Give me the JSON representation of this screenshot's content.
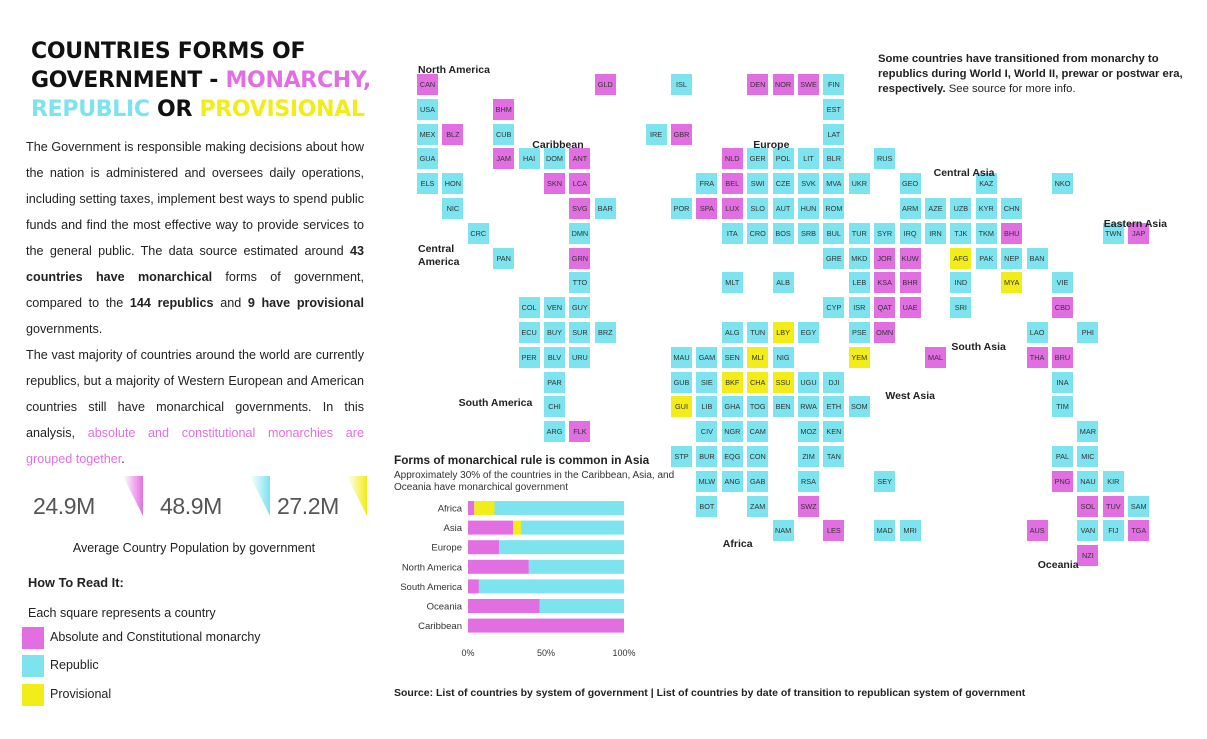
{
  "colors": {
    "monarchy": "#e26fe1",
    "republic": "#7de3ee",
    "provisional": "#f2ec18",
    "text": "#222222"
  },
  "title": {
    "line1": "COUNTRIES FORMS OF",
    "line2_prefix": "GOVERNMENT - ",
    "monarchy": "MONARCHY,",
    "republic": "REPUBLIC",
    "or": " OR ",
    "provisional": "PROVISIONAL"
  },
  "intro": {
    "p1_a": "The Government is responsible making decisions about how the nation is administered and oversees daily operations, including setting taxes, implement best ways to spend public funds and find the most effective way to provide services to the general public.  The  data source estimated around ",
    "p1_b1": "43 countries have monarchical",
    "p1_c": " forms of government, compared to the ",
    "p1_b2": "144 republics",
    "p1_d": " and ",
    "p1_b3": "9 have provisional",
    "p1_e": " governments.",
    "p2_a": "The vast majority of countries around the world are currently republics, but a majority of Western European and American countries still have monarchical governments. In this analysis, ",
    "p2_hl": "absolute and constitutional monarchies are grouped together",
    "p2_end": "."
  },
  "kpis": [
    {
      "value": "24.9M",
      "color": "#e26fe1"
    },
    {
      "value": "48.9M",
      "color": "#7de3ee"
    },
    {
      "value": "27.2M",
      "color": "#f2ec18"
    }
  ],
  "kpi_caption": "Average Country Population by government",
  "how_to_read": {
    "title": "How To Read It:",
    "subtitle": "Each square represents a country",
    "items": [
      {
        "label": "Absolute and Constitutional monarchy",
        "color": "#e26fe1"
      },
      {
        "label": "Republic",
        "color": "#7de3ee"
      },
      {
        "label": "Provisional",
        "color": "#f2ec18"
      }
    ]
  },
  "note": {
    "bold": "Some countries have transitioned from monarchy to republics during World I, World II, prewar or postwar era, respectively.",
    "rest": " See source for more info."
  },
  "regions": [
    {
      "name": "North America",
      "col": 0,
      "row": -0.55
    },
    {
      "name": "Caribbean",
      "col": 4.5,
      "row": 2.45
    },
    {
      "name": "Europe",
      "col": 13.2,
      "row": 2.45
    },
    {
      "name": "Central Asia",
      "col": 20.3,
      "row": 3.6
    },
    {
      "name": "Eastern Asia",
      "col": 27,
      "row": 5.65
    },
    {
      "name": "Central\nAmerica",
      "col": 0,
      "row": 6.65
    },
    {
      "name": "South Asia",
      "col": 21,
      "row": 10.6
    },
    {
      "name": "West Asia",
      "col": 18.4,
      "row": 12.6
    },
    {
      "name": "South America",
      "col": 1.6,
      "row": 12.85
    },
    {
      "name": "Africa",
      "col": 12,
      "row": 18.55
    },
    {
      "name": "Oceania",
      "col": 24.4,
      "row": 19.4
    }
  ],
  "countries": [
    {
      "code": "CAN",
      "col": 0,
      "row": 0,
      "gov": "M"
    },
    {
      "code": "GLD",
      "col": 7,
      "row": 0,
      "gov": "M"
    },
    {
      "code": "ISL",
      "col": 10,
      "row": 0,
      "gov": "R"
    },
    {
      "code": "DEN",
      "col": 13,
      "row": 0,
      "gov": "M"
    },
    {
      "code": "NOR",
      "col": 14,
      "row": 0,
      "gov": "M"
    },
    {
      "code": "SWE",
      "col": 15,
      "row": 0,
      "gov": "M"
    },
    {
      "code": "FIN",
      "col": 16,
      "row": 0,
      "gov": "R"
    },
    {
      "code": "USA",
      "col": 0,
      "row": 1,
      "gov": "R"
    },
    {
      "code": "BHM",
      "col": 3,
      "row": 1,
      "gov": "M"
    },
    {
      "code": "EST",
      "col": 16,
      "row": 1,
      "gov": "R"
    },
    {
      "code": "MEX",
      "col": 0,
      "row": 2,
      "gov": "R"
    },
    {
      "code": "BLZ",
      "col": 1,
      "row": 2,
      "gov": "M"
    },
    {
      "code": "CUB",
      "col": 3,
      "row": 2,
      "gov": "R"
    },
    {
      "code": "IRE",
      "col": 9,
      "row": 2,
      "gov": "R"
    },
    {
      "code": "GBR",
      "col": 10,
      "row": 2,
      "gov": "M"
    },
    {
      "code": "LAT",
      "col": 16,
      "row": 2,
      "gov": "R"
    },
    {
      "code": "GUA",
      "col": 0,
      "row": 3,
      "gov": "R"
    },
    {
      "code": "JAM",
      "col": 3,
      "row": 3,
      "gov": "M"
    },
    {
      "code": "HAI",
      "col": 4,
      "row": 3,
      "gov": "R"
    },
    {
      "code": "DOM",
      "col": 5,
      "row": 3,
      "gov": "R"
    },
    {
      "code": "ANT",
      "col": 6,
      "row": 3,
      "gov": "M"
    },
    {
      "code": "NLD",
      "col": 12,
      "row": 3,
      "gov": "M"
    },
    {
      "code": "GER",
      "col": 13,
      "row": 3,
      "gov": "R"
    },
    {
      "code": "POL",
      "col": 14,
      "row": 3,
      "gov": "R"
    },
    {
      "code": "LIT",
      "col": 15,
      "row": 3,
      "gov": "R"
    },
    {
      "code": "BLR",
      "col": 16,
      "row": 3,
      "gov": "R"
    },
    {
      "code": "RUS",
      "col": 18,
      "row": 3,
      "gov": "R"
    },
    {
      "code": "ELS",
      "col": 0,
      "row": 4,
      "gov": "R"
    },
    {
      "code": "HON",
      "col": 1,
      "row": 4,
      "gov": "R"
    },
    {
      "code": "SKN",
      "col": 5,
      "row": 4,
      "gov": "M"
    },
    {
      "code": "LCA",
      "col": 6,
      "row": 4,
      "gov": "M"
    },
    {
      "code": "FRA",
      "col": 11,
      "row": 4,
      "gov": "R"
    },
    {
      "code": "BEL",
      "col": 12,
      "row": 4,
      "gov": "M"
    },
    {
      "code": "SWI",
      "col": 13,
      "row": 4,
      "gov": "R"
    },
    {
      "code": "CZE",
      "col": 14,
      "row": 4,
      "gov": "R"
    },
    {
      "code": "SVK",
      "col": 15,
      "row": 4,
      "gov": "R"
    },
    {
      "code": "MVA",
      "col": 16,
      "row": 4,
      "gov": "R"
    },
    {
      "code": "UKR",
      "col": 17,
      "row": 4,
      "gov": "R"
    },
    {
      "code": "GEO",
      "col": 19,
      "row": 4,
      "gov": "R"
    },
    {
      "code": "KAZ",
      "col": 22,
      "row": 4,
      "gov": "R"
    },
    {
      "code": "NKO",
      "col": 25,
      "row": 4,
      "gov": "R"
    },
    {
      "code": "NIC",
      "col": 1,
      "row": 5,
      "gov": "R"
    },
    {
      "code": "SVG",
      "col": 6,
      "row": 5,
      "gov": "M"
    },
    {
      "code": "BAR",
      "col": 7,
      "row": 5,
      "gov": "R"
    },
    {
      "code": "POR",
      "col": 10,
      "row": 5,
      "gov": "R"
    },
    {
      "code": "SPA",
      "col": 11,
      "row": 5,
      "gov": "M"
    },
    {
      "code": "LUX",
      "col": 12,
      "row": 5,
      "gov": "M"
    },
    {
      "code": "SLO",
      "col": 13,
      "row": 5,
      "gov": "R"
    },
    {
      "code": "AUT",
      "col": 14,
      "row": 5,
      "gov": "R"
    },
    {
      "code": "HUN",
      "col": 15,
      "row": 5,
      "gov": "R"
    },
    {
      "code": "ROM",
      "col": 16,
      "row": 5,
      "gov": "R"
    },
    {
      "code": "ARM",
      "col": 19,
      "row": 5,
      "gov": "R"
    },
    {
      "code": "AZE",
      "col": 20,
      "row": 5,
      "gov": "R"
    },
    {
      "code": "UZB",
      "col": 21,
      "row": 5,
      "gov": "R"
    },
    {
      "code": "KYR",
      "col": 22,
      "row": 5,
      "gov": "R"
    },
    {
      "code": "CHN",
      "col": 23,
      "row": 5,
      "gov": "R"
    },
    {
      "code": "CRC",
      "col": 2,
      "row": 6,
      "gov": "R"
    },
    {
      "code": "DMN",
      "col": 6,
      "row": 6,
      "gov": "R"
    },
    {
      "code": "ITA",
      "col": 12,
      "row": 6,
      "gov": "R"
    },
    {
      "code": "CRO",
      "col": 13,
      "row": 6,
      "gov": "R"
    },
    {
      "code": "BOS",
      "col": 14,
      "row": 6,
      "gov": "R"
    },
    {
      "code": "SRB",
      "col": 15,
      "row": 6,
      "gov": "R"
    },
    {
      "code": "BUL",
      "col": 16,
      "row": 6,
      "gov": "R"
    },
    {
      "code": "TUR",
      "col": 17,
      "row": 6,
      "gov": "R"
    },
    {
      "code": "SYR",
      "col": 18,
      "row": 6,
      "gov": "R"
    },
    {
      "code": "IRQ",
      "col": 19,
      "row": 6,
      "gov": "R"
    },
    {
      "code": "IRN",
      "col": 20,
      "row": 6,
      "gov": "R"
    },
    {
      "code": "TJK",
      "col": 21,
      "row": 6,
      "gov": "R"
    },
    {
      "code": "TKM",
      "col": 22,
      "row": 6,
      "gov": "R"
    },
    {
      "code": "BHU",
      "col": 23,
      "row": 6,
      "gov": "M"
    },
    {
      "code": "TWN",
      "col": 27,
      "row": 6,
      "gov": "R"
    },
    {
      "code": "JAP",
      "col": 28,
      "row": 6,
      "gov": "M"
    },
    {
      "code": "PAN",
      "col": 3,
      "row": 7,
      "gov": "R"
    },
    {
      "code": "GRN",
      "col": 6,
      "row": 7,
      "gov": "M"
    },
    {
      "code": "GRE",
      "col": 16,
      "row": 7,
      "gov": "R"
    },
    {
      "code": "MKD",
      "col": 17,
      "row": 7,
      "gov": "R"
    },
    {
      "code": "JOR",
      "col": 18,
      "row": 7,
      "gov": "M"
    },
    {
      "code": "KUW",
      "col": 19,
      "row": 7,
      "gov": "M"
    },
    {
      "code": "AFG",
      "col": 21,
      "row": 7,
      "gov": "P"
    },
    {
      "code": "PAK",
      "col": 22,
      "row": 7,
      "gov": "R"
    },
    {
      "code": "NEP",
      "col": 23,
      "row": 7,
      "gov": "R"
    },
    {
      "code": "BAN",
      "col": 24,
      "row": 7,
      "gov": "R"
    },
    {
      "code": "TTO",
      "col": 6,
      "row": 8,
      "gov": "R"
    },
    {
      "code": "MLT",
      "col": 12,
      "row": 8,
      "gov": "R"
    },
    {
      "code": "ALB",
      "col": 14,
      "row": 8,
      "gov": "R"
    },
    {
      "code": "LEB",
      "col": 17,
      "row": 8,
      "gov": "R"
    },
    {
      "code": "KSA",
      "col": 18,
      "row": 8,
      "gov": "M"
    },
    {
      "code": "BHR",
      "col": 19,
      "row": 8,
      "gov": "M"
    },
    {
      "code": "IND",
      "col": 21,
      "row": 8,
      "gov": "R"
    },
    {
      "code": "MYA",
      "col": 23,
      "row": 8,
      "gov": "P"
    },
    {
      "code": "VIE",
      "col": 25,
      "row": 8,
      "gov": "R"
    },
    {
      "code": "COL",
      "col": 4,
      "row": 9,
      "gov": "R"
    },
    {
      "code": "VEN",
      "col": 5,
      "row": 9,
      "gov": "R"
    },
    {
      "code": "GUY",
      "col": 6,
      "row": 9,
      "gov": "R"
    },
    {
      "code": "CYP",
      "col": 16,
      "row": 9,
      "gov": "R"
    },
    {
      "code": "ISR",
      "col": 17,
      "row": 9,
      "gov": "R"
    },
    {
      "code": "QAT",
      "col": 18,
      "row": 9,
      "gov": "M"
    },
    {
      "code": "UAE",
      "col": 19,
      "row": 9,
      "gov": "M"
    },
    {
      "code": "SRI",
      "col": 21,
      "row": 9,
      "gov": "R"
    },
    {
      "code": "CBD",
      "col": 25,
      "row": 9,
      "gov": "M"
    },
    {
      "code": "ECU",
      "col": 4,
      "row": 10,
      "gov": "R"
    },
    {
      "code": "BUY",
      "col": 5,
      "row": 10,
      "gov": "R"
    },
    {
      "code": "SUR",
      "col": 6,
      "row": 10,
      "gov": "R"
    },
    {
      "code": "BRZ",
      "col": 7,
      "row": 10,
      "gov": "R"
    },
    {
      "code": "ALG",
      "col": 12,
      "row": 10,
      "gov": "R"
    },
    {
      "code": "TUN",
      "col": 13,
      "row": 10,
      "gov": "R"
    },
    {
      "code": "LBY",
      "col": 14,
      "row": 10,
      "gov": "P"
    },
    {
      "code": "EGY",
      "col": 15,
      "row": 10,
      "gov": "R"
    },
    {
      "code": "PSE",
      "col": 17,
      "row": 10,
      "gov": "R"
    },
    {
      "code": "OMN",
      "col": 18,
      "row": 10,
      "gov": "M"
    },
    {
      "code": "LAO",
      "col": 24,
      "row": 10,
      "gov": "R"
    },
    {
      "code": "PHI",
      "col": 26,
      "row": 10,
      "gov": "R"
    },
    {
      "code": "PER",
      "col": 4,
      "row": 11,
      "gov": "R"
    },
    {
      "code": "BLV",
      "col": 5,
      "row": 11,
      "gov": "R"
    },
    {
      "code": "URU",
      "col": 6,
      "row": 11,
      "gov": "R"
    },
    {
      "code": "MAU",
      "col": 10,
      "row": 11,
      "gov": "R"
    },
    {
      "code": "GAM",
      "col": 11,
      "row": 11,
      "gov": "R"
    },
    {
      "code": "SEN",
      "col": 12,
      "row": 11,
      "gov": "R"
    },
    {
      "code": "MLI",
      "col": 13,
      "row": 11,
      "gov": "P"
    },
    {
      "code": "NIG",
      "col": 14,
      "row": 11,
      "gov": "R"
    },
    {
      "code": "YEM",
      "col": 17,
      "row": 11,
      "gov": "P"
    },
    {
      "code": "MAL",
      "col": 20,
      "row": 11,
      "gov": "M"
    },
    {
      "code": "THA",
      "col": 24,
      "row": 11,
      "gov": "M"
    },
    {
      "code": "BRU",
      "col": 25,
      "row": 11,
      "gov": "M"
    },
    {
      "code": "PAR",
      "col": 5,
      "row": 12,
      "gov": "R"
    },
    {
      "code": "GUB",
      "col": 10,
      "row": 12,
      "gov": "R"
    },
    {
      "code": "SIE",
      "col": 11,
      "row": 12,
      "gov": "R"
    },
    {
      "code": "BKF",
      "col": 12,
      "row": 12,
      "gov": "P"
    },
    {
      "code": "CHA",
      "col": 13,
      "row": 12,
      "gov": "P"
    },
    {
      "code": "SSU",
      "col": 14,
      "row": 12,
      "gov": "P"
    },
    {
      "code": "UGU",
      "col": 15,
      "row": 12,
      "gov": "R"
    },
    {
      "code": "DJI",
      "col": 16,
      "row": 12,
      "gov": "R"
    },
    {
      "code": "INA",
      "col": 25,
      "row": 12,
      "gov": "R"
    },
    {
      "code": "CHI",
      "col": 5,
      "row": 13,
      "gov": "R"
    },
    {
      "code": "GUI",
      "col": 10,
      "row": 13,
      "gov": "P"
    },
    {
      "code": "LIB",
      "col": 11,
      "row": 13,
      "gov": "R"
    },
    {
      "code": "GHA",
      "col": 12,
      "row": 13,
      "gov": "R"
    },
    {
      "code": "TOG",
      "col": 13,
      "row": 13,
      "gov": "R"
    },
    {
      "code": "BEN",
      "col": 14,
      "row": 13,
      "gov": "R"
    },
    {
      "code": "RWA",
      "col": 15,
      "row": 13,
      "gov": "R"
    },
    {
      "code": "ETH",
      "col": 16,
      "row": 13,
      "gov": "R"
    },
    {
      "code": "SOM",
      "col": 17,
      "row": 13,
      "gov": "R"
    },
    {
      "code": "TIM",
      "col": 25,
      "row": 13,
      "gov": "R"
    },
    {
      "code": "ARG",
      "col": 5,
      "row": 14,
      "gov": "R"
    },
    {
      "code": "FLK",
      "col": 6,
      "row": 14,
      "gov": "M"
    },
    {
      "code": "CIV",
      "col": 11,
      "row": 14,
      "gov": "R"
    },
    {
      "code": "NGR",
      "col": 12,
      "row": 14,
      "gov": "R"
    },
    {
      "code": "CAM",
      "col": 13,
      "row": 14,
      "gov": "R"
    },
    {
      "code": "MOZ",
      "col": 15,
      "row": 14,
      "gov": "R"
    },
    {
      "code": "KEN",
      "col": 16,
      "row": 14,
      "gov": "R"
    },
    {
      "code": "MAR",
      "col": 26,
      "row": 14,
      "gov": "R"
    },
    {
      "code": "STP",
      "col": 10,
      "row": 15,
      "gov": "R"
    },
    {
      "code": "BUR",
      "col": 11,
      "row": 15,
      "gov": "R"
    },
    {
      "code": "EQG",
      "col": 12,
      "row": 15,
      "gov": "R"
    },
    {
      "code": "CON",
      "col": 13,
      "row": 15,
      "gov": "R"
    },
    {
      "code": "ZIM",
      "col": 15,
      "row": 15,
      "gov": "R"
    },
    {
      "code": "TAN",
      "col": 16,
      "row": 15,
      "gov": "R"
    },
    {
      "code": "PAL",
      "col": 25,
      "row": 15,
      "gov": "R"
    },
    {
      "code": "MIC",
      "col": 26,
      "row": 15,
      "gov": "R"
    },
    {
      "code": "MLW",
      "col": 11,
      "row": 16,
      "gov": "R"
    },
    {
      "code": "ANG",
      "col": 12,
      "row": 16,
      "gov": "R"
    },
    {
      "code": "GAB",
      "col": 13,
      "row": 16,
      "gov": "R"
    },
    {
      "code": "RSA",
      "col": 15,
      "row": 16,
      "gov": "R"
    },
    {
      "code": "SEY",
      "col": 18,
      "row": 16,
      "gov": "R"
    },
    {
      "code": "PNG",
      "col": 25,
      "row": 16,
      "gov": "M"
    },
    {
      "code": "NAU",
      "col": 26,
      "row": 16,
      "gov": "R"
    },
    {
      "code": "KIR",
      "col": 27,
      "row": 16,
      "gov": "R"
    },
    {
      "code": "BOT",
      "col": 11,
      "row": 17,
      "gov": "R"
    },
    {
      "code": "ZAM",
      "col": 13,
      "row": 17,
      "gov": "R"
    },
    {
      "code": "SWZ",
      "col": 15,
      "row": 17,
      "gov": "M"
    },
    {
      "code": "SOL",
      "col": 26,
      "row": 17,
      "gov": "M"
    },
    {
      "code": "TUV",
      "col": 27,
      "row": 17,
      "gov": "M"
    },
    {
      "code": "SAM",
      "col": 28,
      "row": 17,
      "gov": "R"
    },
    {
      "code": "NAM",
      "col": 14,
      "row": 18,
      "gov": "R"
    },
    {
      "code": "LES",
      "col": 16,
      "row": 18,
      "gov": "M"
    },
    {
      "code": "MAD",
      "col": 18,
      "row": 18,
      "gov": "R"
    },
    {
      "code": "MRI",
      "col": 19,
      "row": 18,
      "gov": "R"
    },
    {
      "code": "AUS",
      "col": 24,
      "row": 18,
      "gov": "M"
    },
    {
      "code": "VAN",
      "col": 26,
      "row": 18,
      "gov": "R"
    },
    {
      "code": "FIJ",
      "col": 27,
      "row": 18,
      "gov": "R"
    },
    {
      "code": "TGA",
      "col": 28,
      "row": 18,
      "gov": "M"
    },
    {
      "code": "NZI",
      "col": 26,
      "row": 19,
      "gov": "M"
    }
  ],
  "chart_data": {
    "type": "bar",
    "orientation": "horizontal",
    "stacked": true,
    "normalized": true,
    "title": "Forms of monarchical rule is common in Asia",
    "subtitle": "Approximately 30% of the countries in the Caribbean, Asia, and Oceania have monarchical government",
    "categories": [
      "Africa",
      "Asia",
      "Europe",
      "North America",
      "South America",
      "Oceania",
      "Caribbean"
    ],
    "series": [
      {
        "key": "monarchy",
        "values": [
          4,
          29,
          20,
          39,
          7,
          46,
          100
        ]
      },
      {
        "key": "provisional",
        "values": [
          13,
          5,
          0,
          0,
          0,
          0,
          0
        ]
      },
      {
        "key": "republic",
        "values": [
          83,
          66,
          80,
          61,
          93,
          54,
          0
        ]
      }
    ],
    "xlim": [
      0,
      100
    ],
    "xticks": [
      "0%",
      "50%",
      "100%"
    ],
    "legend": "none"
  },
  "source": "Source: List of countries by system of government | List of countries by date of transition to republican system of government"
}
